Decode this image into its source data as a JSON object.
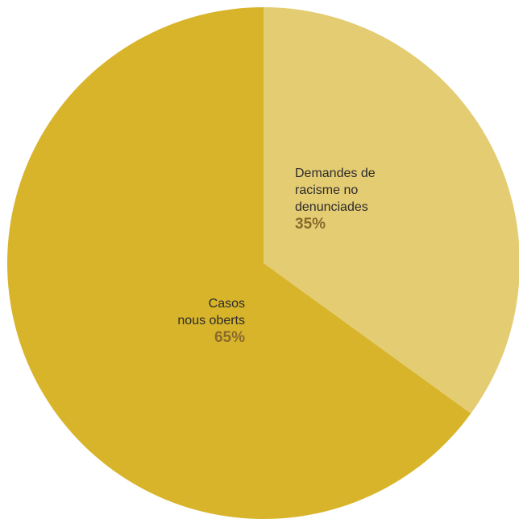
{
  "chart_data": {
    "type": "pie",
    "slices": [
      {
        "label_lines": [
          "Demandes de",
          "racisme no",
          "denunciades"
        ],
        "percent_label": "35%",
        "value": 35,
        "color": "#e4cc73"
      },
      {
        "label_lines": [
          "Casos",
          "nous oberts"
        ],
        "percent_label": "65%",
        "value": 65,
        "color": "#d8b42b"
      }
    ],
    "start": "12 o'clock",
    "direction": "clockwise"
  }
}
